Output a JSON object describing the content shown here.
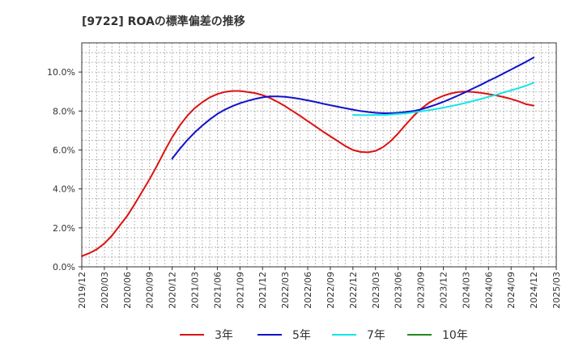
{
  "chart_data": {
    "type": "line",
    "title": "[9722]  ROAの標準偏差の推移",
    "xlabel": "",
    "ylabel": "",
    "x_ticks": [
      "2019/12",
      "2020/03",
      "2020/06",
      "2020/09",
      "2020/12",
      "2021/03",
      "2021/06",
      "2021/09",
      "2021/12",
      "2022/03",
      "2022/06",
      "2022/09",
      "2022/12",
      "2023/03",
      "2023/06",
      "2023/09",
      "2023/12",
      "2024/03",
      "2024/06",
      "2024/09",
      "2024/12",
      "2025/03"
    ],
    "y_ticks": [
      "0.0%",
      "2.0%",
      "4.0%",
      "6.0%",
      "8.0%",
      "10.0%"
    ],
    "y_tick_values": [
      0,
      2,
      4,
      6,
      8,
      10
    ],
    "ylim": [
      0,
      11.5
    ],
    "xlim": [
      "2019/12",
      "2025/03"
    ],
    "grid": true,
    "legend_position": "bottom",
    "series": [
      {
        "name": "3年",
        "color": "#dd1111",
        "points": [
          [
            "2019/12",
            0.55
          ],
          [
            "2020/01",
            0.7
          ],
          [
            "2020/02",
            0.9
          ],
          [
            "2020/03",
            1.2
          ],
          [
            "2020/04",
            1.6
          ],
          [
            "2020/05",
            2.1
          ],
          [
            "2020/06",
            2.6
          ],
          [
            "2020/07",
            3.2
          ],
          [
            "2020/08",
            3.85
          ],
          [
            "2020/09",
            4.5
          ],
          [
            "2020/10",
            5.2
          ],
          [
            "2020/11",
            5.95
          ],
          [
            "2020/12",
            6.65
          ],
          [
            "2021/01",
            7.25
          ],
          [
            "2021/02",
            7.75
          ],
          [
            "2021/03",
            8.15
          ],
          [
            "2021/04",
            8.45
          ],
          [
            "2021/05",
            8.7
          ],
          [
            "2021/06",
            8.87
          ],
          [
            "2021/07",
            8.98
          ],
          [
            "2021/08",
            9.03
          ],
          [
            "2021/09",
            9.03
          ],
          [
            "2021/10",
            8.98
          ],
          [
            "2021/11",
            8.92
          ],
          [
            "2021/12",
            8.82
          ],
          [
            "2022/01",
            8.67
          ],
          [
            "2022/02",
            8.47
          ],
          [
            "2022/03",
            8.25
          ],
          [
            "2022/04",
            8.0
          ],
          [
            "2022/05",
            7.75
          ],
          [
            "2022/06",
            7.48
          ],
          [
            "2022/07",
            7.22
          ],
          [
            "2022/08",
            6.95
          ],
          [
            "2022/09",
            6.7
          ],
          [
            "2022/10",
            6.45
          ],
          [
            "2022/11",
            6.2
          ],
          [
            "2022/12",
            6.0
          ],
          [
            "2023/01",
            5.9
          ],
          [
            "2023/02",
            5.88
          ],
          [
            "2023/03",
            5.95
          ],
          [
            "2023/04",
            6.15
          ],
          [
            "2023/05",
            6.45
          ],
          [
            "2023/06",
            6.85
          ],
          [
            "2023/07",
            7.3
          ],
          [
            "2023/08",
            7.72
          ],
          [
            "2023/09",
            8.1
          ],
          [
            "2023/10",
            8.4
          ],
          [
            "2023/11",
            8.62
          ],
          [
            "2023/12",
            8.78
          ],
          [
            "2024/01",
            8.9
          ],
          [
            "2024/02",
            8.98
          ],
          [
            "2024/03",
            9.0
          ],
          [
            "2024/04",
            8.98
          ],
          [
            "2024/05",
            8.93
          ],
          [
            "2024/06",
            8.87
          ],
          [
            "2024/07",
            8.8
          ],
          [
            "2024/08",
            8.72
          ],
          [
            "2024/09",
            8.62
          ],
          [
            "2024/10",
            8.5
          ],
          [
            "2024/11",
            8.35
          ],
          [
            "2024/12",
            8.28
          ]
        ]
      },
      {
        "name": "5年",
        "color": "#1111cc",
        "points": [
          [
            "2020/12",
            5.55
          ],
          [
            "2021/01",
            6.05
          ],
          [
            "2021/02",
            6.5
          ],
          [
            "2021/03",
            6.9
          ],
          [
            "2021/04",
            7.25
          ],
          [
            "2021/05",
            7.57
          ],
          [
            "2021/06",
            7.85
          ],
          [
            "2021/07",
            8.07
          ],
          [
            "2021/08",
            8.25
          ],
          [
            "2021/09",
            8.4
          ],
          [
            "2021/10",
            8.52
          ],
          [
            "2021/11",
            8.62
          ],
          [
            "2021/12",
            8.7
          ],
          [
            "2022/01",
            8.75
          ],
          [
            "2022/02",
            8.75
          ],
          [
            "2022/03",
            8.73
          ],
          [
            "2022/04",
            8.68
          ],
          [
            "2022/05",
            8.62
          ],
          [
            "2022/06",
            8.55
          ],
          [
            "2022/07",
            8.47
          ],
          [
            "2022/08",
            8.38
          ],
          [
            "2022/09",
            8.3
          ],
          [
            "2022/10",
            8.22
          ],
          [
            "2022/11",
            8.14
          ],
          [
            "2022/12",
            8.07
          ],
          [
            "2023/01",
            8.0
          ],
          [
            "2023/02",
            7.95
          ],
          [
            "2023/03",
            7.91
          ],
          [
            "2023/04",
            7.89
          ],
          [
            "2023/05",
            7.89
          ],
          [
            "2023/06",
            7.91
          ],
          [
            "2023/07",
            7.95
          ],
          [
            "2023/08",
            8.0
          ],
          [
            "2023/09",
            8.08
          ],
          [
            "2023/10",
            8.2
          ],
          [
            "2023/11",
            8.33
          ],
          [
            "2023/12",
            8.47
          ],
          [
            "2024/01",
            8.63
          ],
          [
            "2024/02",
            8.8
          ],
          [
            "2024/03",
            8.98
          ],
          [
            "2024/04",
            9.17
          ],
          [
            "2024/05",
            9.35
          ],
          [
            "2024/06",
            9.55
          ],
          [
            "2024/07",
            9.73
          ],
          [
            "2024/08",
            9.93
          ],
          [
            "2024/09",
            10.13
          ],
          [
            "2024/10",
            10.33
          ],
          [
            "2024/11",
            10.53
          ],
          [
            "2024/12",
            10.75
          ]
        ]
      },
      {
        "name": "7年",
        "color": "#11e6e6",
        "points": [
          [
            "2022/12",
            7.8
          ],
          [
            "2023/01",
            7.79
          ],
          [
            "2023/02",
            7.79
          ],
          [
            "2023/03",
            7.8
          ],
          [
            "2023/04",
            7.8
          ],
          [
            "2023/05",
            7.82
          ],
          [
            "2023/06",
            7.85
          ],
          [
            "2023/07",
            7.88
          ],
          [
            "2023/08",
            7.93
          ],
          [
            "2023/09",
            7.98
          ],
          [
            "2023/10",
            8.04
          ],
          [
            "2023/11",
            8.1
          ],
          [
            "2023/12",
            8.17
          ],
          [
            "2024/01",
            8.25
          ],
          [
            "2024/02",
            8.33
          ],
          [
            "2024/03",
            8.42
          ],
          [
            "2024/04",
            8.52
          ],
          [
            "2024/05",
            8.62
          ],
          [
            "2024/06",
            8.73
          ],
          [
            "2024/07",
            8.83
          ],
          [
            "2024/08",
            8.95
          ],
          [
            "2024/09",
            9.06
          ],
          [
            "2024/10",
            9.18
          ],
          [
            "2024/11",
            9.3
          ],
          [
            "2024/12",
            9.45
          ]
        ]
      },
      {
        "name": "10年",
        "color": "#228822",
        "points": []
      }
    ]
  }
}
